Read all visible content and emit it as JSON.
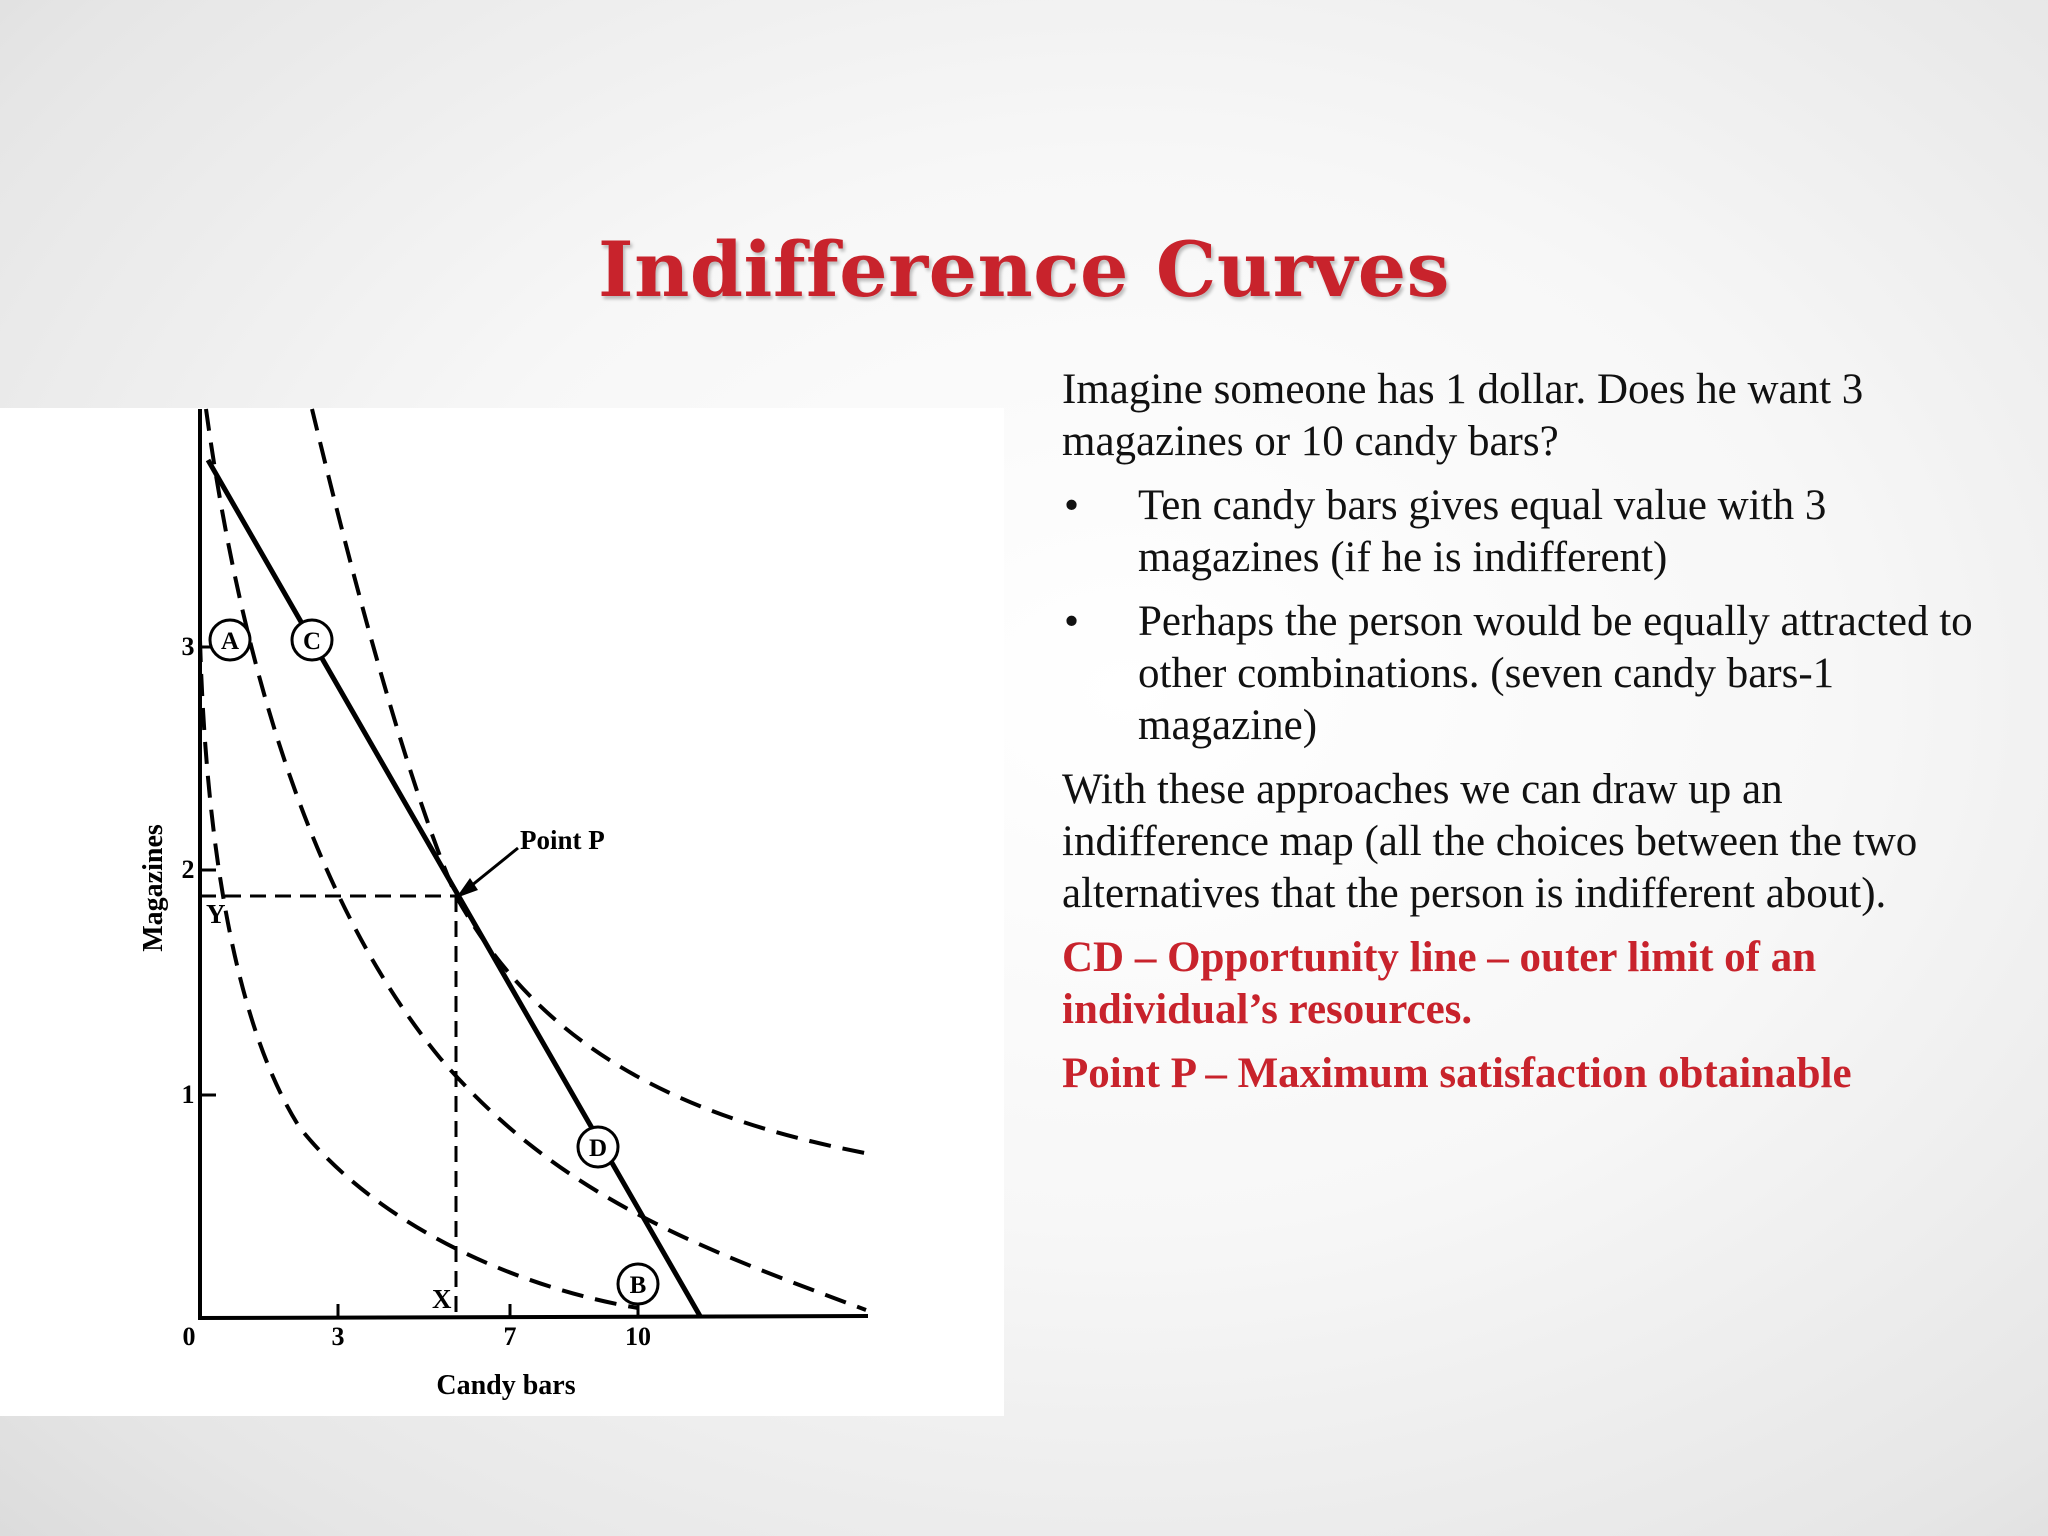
{
  "slide": {
    "title": "Indifference Curves"
  },
  "text": {
    "intro": "Imagine someone has 1 dollar. Does he want 3 magazines or 10 candy bars?",
    "bullets": [
      "Ten candy bars gives equal value with 3 magazines (if he is indifferent)",
      "Perhaps the person would be equally attracted to other combinations. (seven candy bars-1 magazine)"
    ],
    "bullet_glyph": "•",
    "map_paragraph": "With these approaches we can draw  up an indifference map (all the choices between the two alternatives that the person is indifferent about).",
    "cd_definition": "CD – Opportunity line – outer limit of an individual’s resources.",
    "p_definition": "Point P – Maximum satisfaction obtainable"
  },
  "diagram": {
    "x_axis_label": "Candy bars",
    "y_axis_label": "Magazines",
    "origin_label": "0",
    "x_ticks": [
      "3",
      "7",
      "10"
    ],
    "y_ticks": [
      "1",
      "2",
      "3"
    ],
    "point_labels": {
      "a": "A",
      "b": "B",
      "c": "C",
      "d": "D",
      "p": "Point P",
      "x": "X",
      "y": "Y"
    }
  }
}
